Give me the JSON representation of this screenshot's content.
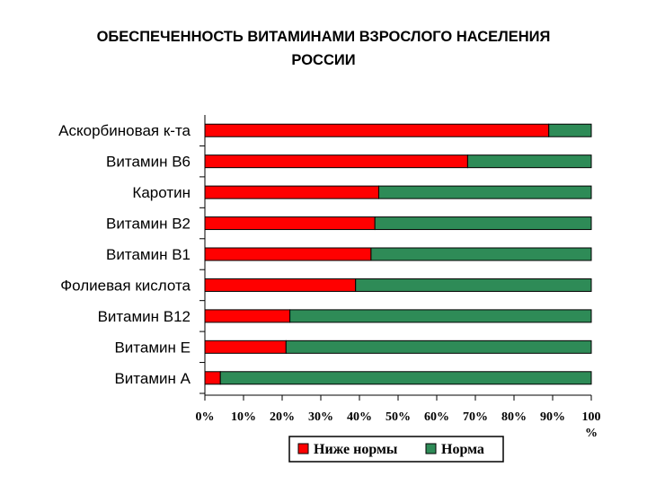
{
  "title_line1": "ОБЕСПЕЧЕННОСТЬ ВИТАМИНАМИ ВЗРОСЛОГО НАСЕЛЕНИЯ",
  "title_line2": "РОССИИ",
  "colors": {
    "below": "#ff0000",
    "norm": "#2e8b57"
  },
  "chart_data": {
    "type": "bar",
    "orientation": "horizontal",
    "stacked": true,
    "categories": [
      "Аскорбиновая к-та",
      "Витамин B6",
      "Каротин",
      "Витамин B2",
      "Витамин B1",
      "Фолиевая кислота",
      "Витамин B12",
      "Витамин E",
      "Витамин A"
    ],
    "series": [
      {
        "name": "Ниже нормы",
        "color": "#ff0000",
        "values": [
          89,
          68,
          45,
          44,
          43,
          39,
          22,
          21,
          4
        ]
      },
      {
        "name": "Норма",
        "color": "#2e8b57",
        "values": [
          11,
          32,
          55,
          56,
          57,
          61,
          78,
          79,
          96
        ]
      }
    ],
    "xlim": [
      0,
      100
    ],
    "xticks": [
      "0%",
      "10%",
      "20%",
      "30%",
      "40%",
      "50%",
      "60%",
      "70%",
      "80%",
      "90%",
      "100"
    ],
    "xunit": "%",
    "legend": "bottom"
  }
}
